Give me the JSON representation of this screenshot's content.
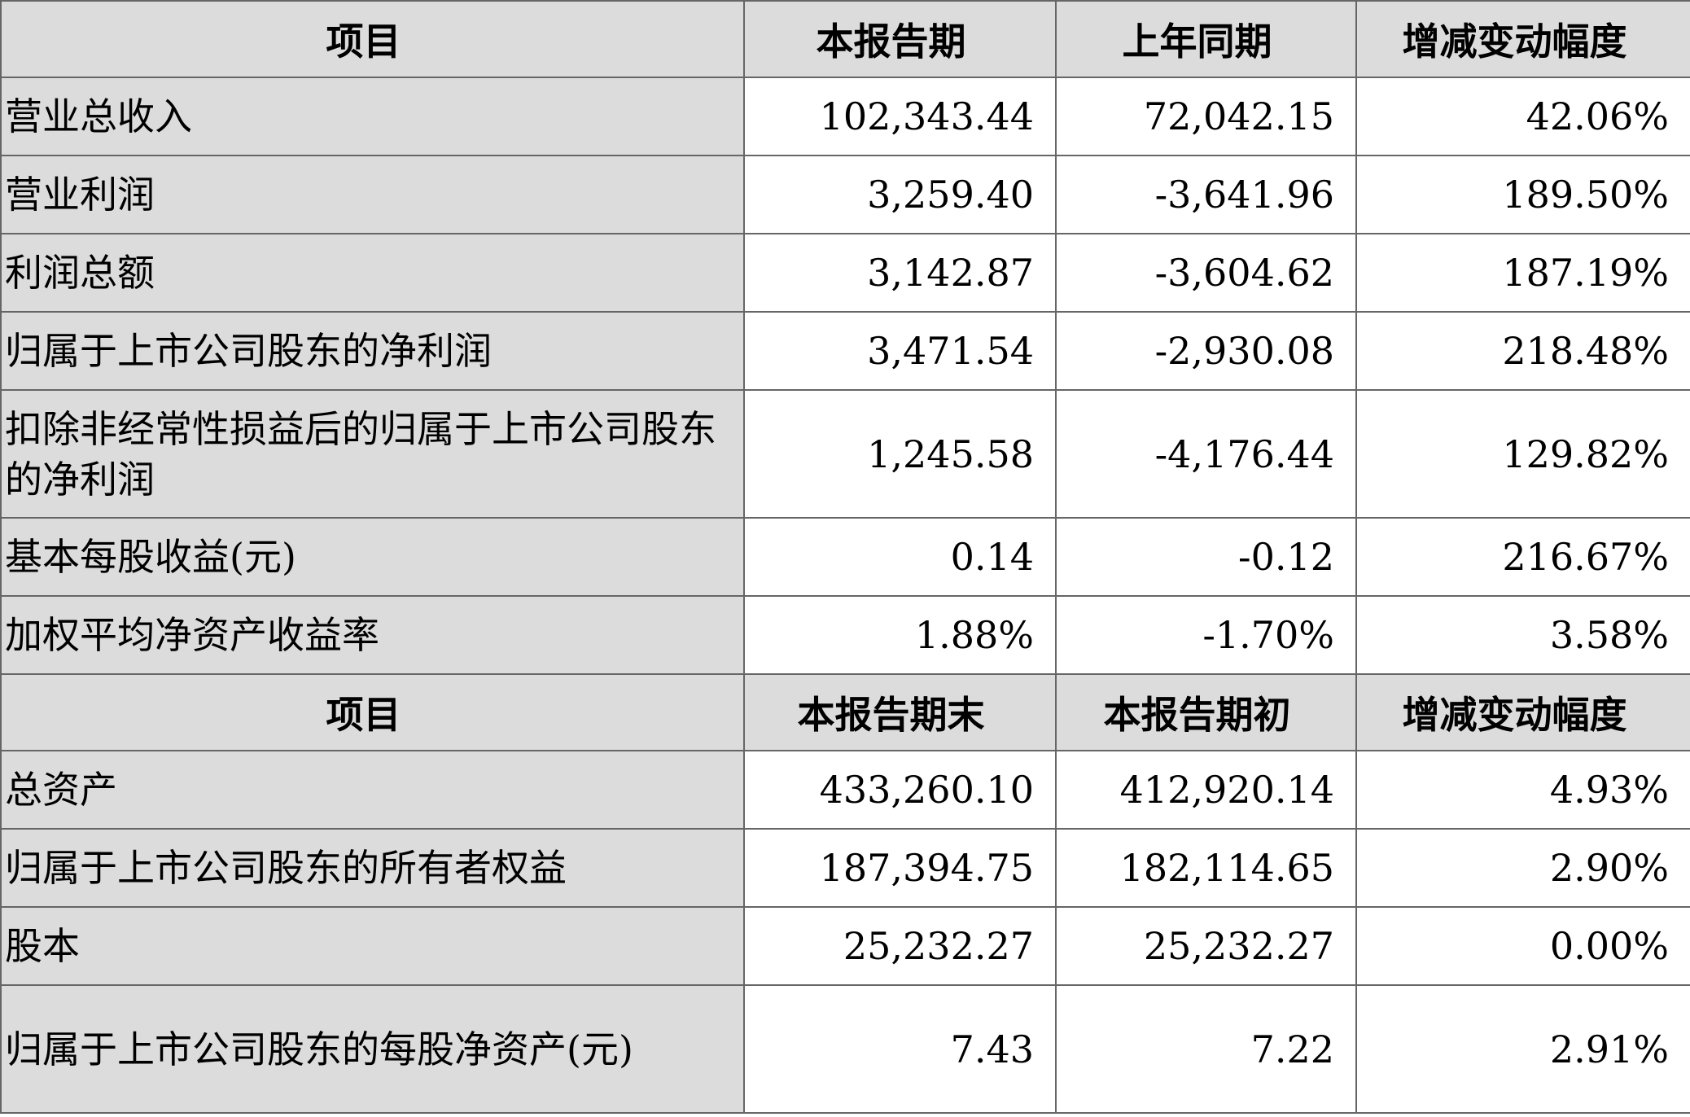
{
  "table1": {
    "headers": [
      "项目",
      "本报告期",
      "上年同期",
      "增减变动幅度"
    ],
    "rows": [
      {
        "label": "营业总收入",
        "current": "102,343.44",
        "prior": "72,042.15",
        "change": "42.06%"
      },
      {
        "label": "营业利润",
        "current": "3,259.40",
        "prior": "-3,641.96",
        "change": "189.50%"
      },
      {
        "label": "利润总额",
        "current": "3,142.87",
        "prior": "-3,604.62",
        "change": "187.19%"
      },
      {
        "label": "归属于上市公司股东的净利润",
        "current": "3,471.54",
        "prior": "-2,930.08",
        "change": "218.48%"
      },
      {
        "label": "扣除非经常性损益后的归属于上市公司股东的净利润",
        "current": "1,245.58",
        "prior": "-4,176.44",
        "change": "129.82%"
      },
      {
        "label": "基本每股收益(元)",
        "current": "0.14",
        "prior": "-0.12",
        "change": "216.67%"
      },
      {
        "label": "加权平均净资产收益率",
        "current": "1.88%",
        "prior": "-1.70%",
        "change": "3.58%"
      }
    ]
  },
  "table2": {
    "headers": [
      "项目",
      "本报告期末",
      "本报告期初",
      "增减变动幅度"
    ],
    "rows": [
      {
        "label": "总资产",
        "current": "433,260.10",
        "prior": "412,920.14",
        "change": "4.93%"
      },
      {
        "label": "归属于上市公司股东的所有者权益",
        "current": "187,394.75",
        "prior": "182,114.65",
        "change": "2.90%"
      },
      {
        "label": "股本",
        "current": "25,232.27",
        "prior": "25,232.27",
        "change": "0.00%"
      },
      {
        "label": "归属于上市公司股东的每股净资产(元)",
        "current": "7.43",
        "prior": "7.22",
        "change": "2.91%"
      }
    ]
  },
  "colors": {
    "header_bg": "#dcdcdc",
    "border": "#666666"
  }
}
